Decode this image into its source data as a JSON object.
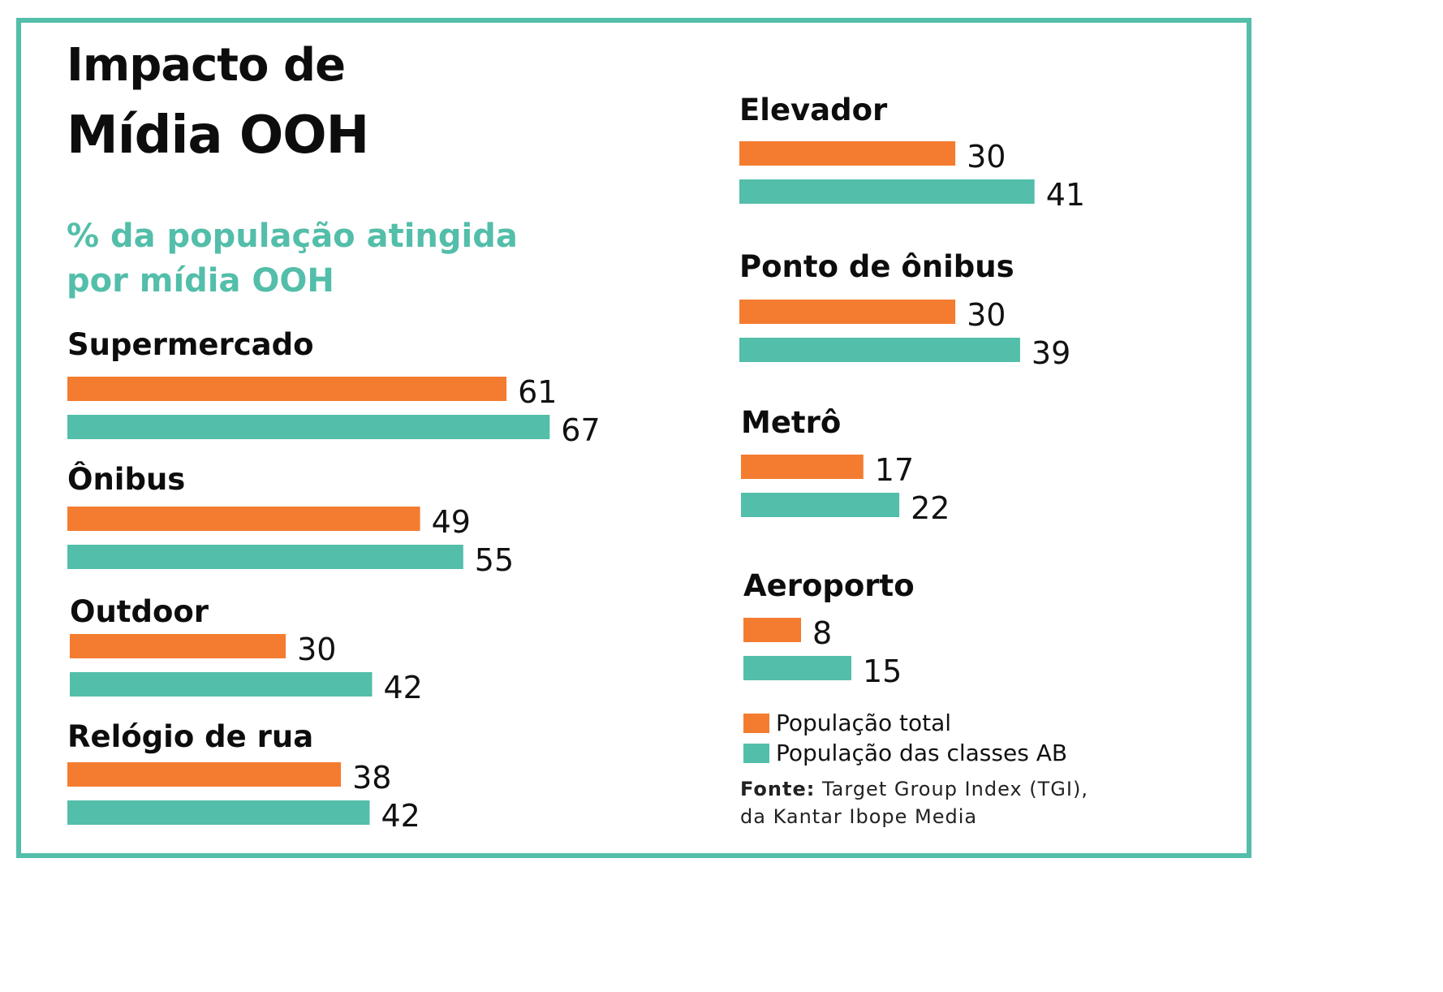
{
  "title": {
    "line1": "Impacto de",
    "line2": "Mídia OOH"
  },
  "subtitle": {
    "line1": "% da população atingida",
    "line2": "por mídia OOH"
  },
  "colors": {
    "total": "#f47c30",
    "ab": "#53bea9",
    "frame": "#53bea9",
    "subtitle": "#53bea9"
  },
  "legend": {
    "total": "População total",
    "ab": "População das classes AB"
  },
  "source": {
    "label": "Fonte:",
    "text": "Target Group Index (TGI),",
    "line2": "da Kantar Ibope Media"
  },
  "chart_data": {
    "type": "bar",
    "orientation": "horizontal",
    "title": "Impacto de Mídia OOH",
    "subtitle": "% da população atingida por mídia OOH",
    "categories": [
      "Supermercado",
      "Ônibus",
      "Outdoor",
      "Relógio de rua",
      "Elevador",
      "Ponto de ônibus",
      "Metrô",
      "Aeroporto"
    ],
    "series": [
      {
        "name": "População total",
        "values": [
          61,
          49,
          30,
          38,
          30,
          30,
          17,
          8
        ]
      },
      {
        "name": "População das classes AB",
        "values": [
          67,
          55,
          42,
          42,
          41,
          39,
          22,
          15
        ]
      }
    ],
    "xlim": [
      0,
      70
    ],
    "unit": "%",
    "grid": false,
    "legend_position": "bottom-right"
  }
}
